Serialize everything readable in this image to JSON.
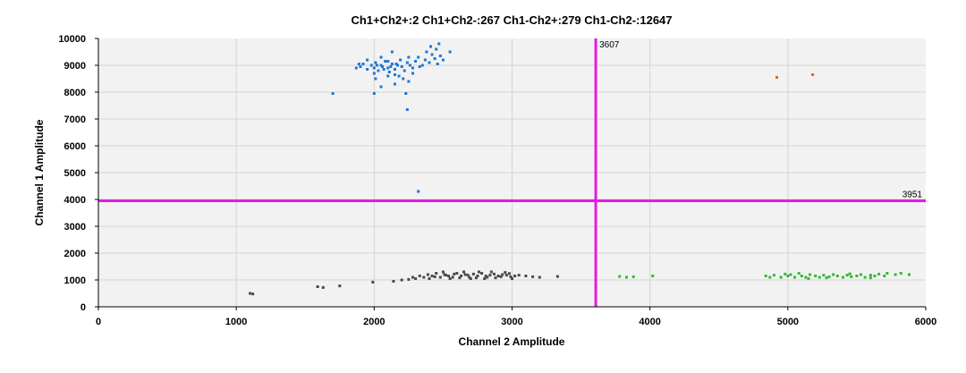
{
  "chart_data": {
    "type": "scatter",
    "title": "Ch1+Ch2+:2  Ch1+Ch2-:267  Ch1-Ch2+:279  Ch1-Ch2-:12647",
    "xlabel": "Channel 2 Amplitude",
    "ylabel": "Channel 1 Amplitude",
    "xlim": [
      0,
      6000
    ],
    "ylim": [
      0,
      10000
    ],
    "xticks": [
      0,
      1000,
      2000,
      3000,
      4000,
      5000,
      6000
    ],
    "yticks": [
      0,
      1000,
      2000,
      3000,
      4000,
      5000,
      6000,
      7000,
      8000,
      9000,
      10000
    ],
    "grid": true,
    "plot_background": "#f2f2f2",
    "threshold_color": "#e619e6",
    "thresholds": {
      "vertical": {
        "value": 3607,
        "label": "3607"
      },
      "horizontal": {
        "value": 3951,
        "label": "3951"
      }
    },
    "series": [
      {
        "color": "#1f77d0",
        "points": [
          [
            1900,
            8950
          ],
          [
            1920,
            9050
          ],
          [
            1950,
            8850
          ],
          [
            1980,
            9000
          ],
          [
            2000,
            8900
          ],
          [
            2010,
            9100
          ],
          [
            2030,
            8800
          ],
          [
            2050,
            9000
          ],
          [
            2060,
            8950
          ],
          [
            2080,
            9150
          ],
          [
            2100,
            8900
          ],
          [
            2110,
            8750
          ],
          [
            2130,
            9050
          ],
          [
            2150,
            8850
          ],
          [
            2170,
            9000
          ],
          [
            2190,
            9200
          ],
          [
            2200,
            8950
          ],
          [
            2220,
            8800
          ],
          [
            2240,
            9100
          ],
          [
            2260,
            9000
          ],
          [
            2280,
            8900
          ],
          [
            2300,
            9150
          ],
          [
            2320,
            9300
          ],
          [
            2350,
            9000
          ],
          [
            2370,
            9200
          ],
          [
            2400,
            9100
          ],
          [
            2420,
            9400
          ],
          [
            2440,
            9250
          ],
          [
            2460,
            9050
          ],
          [
            2480,
            9350
          ],
          [
            2500,
            9200
          ],
          [
            1950,
            9200
          ],
          [
            2000,
            8700
          ],
          [
            2050,
            9300
          ],
          [
            2100,
            9150
          ],
          [
            2150,
            8650
          ],
          [
            2180,
            8600
          ],
          [
            2250,
            9300
          ],
          [
            2330,
            8950
          ],
          [
            2380,
            9500
          ],
          [
            2410,
            9700
          ],
          [
            2450,
            9600
          ],
          [
            2470,
            9800
          ],
          [
            2130,
            9500
          ],
          [
            1870,
            8900
          ],
          [
            1890,
            9050
          ],
          [
            2020,
            9000
          ],
          [
            2070,
            8850
          ],
          [
            2120,
            8950
          ],
          [
            2160,
            9050
          ],
          [
            2010,
            8500
          ],
          [
            2100,
            8600
          ],
          [
            2210,
            8500
          ],
          [
            2250,
            8400
          ],
          [
            2280,
            8700
          ],
          [
            2050,
            8200
          ],
          [
            2150,
            8300
          ],
          [
            2550,
            9500
          ],
          [
            1700,
            7950
          ],
          [
            2000,
            7950
          ],
          [
            2230,
            7950
          ],
          [
            2240,
            7350
          ],
          [
            2320,
            4300
          ]
        ]
      },
      {
        "color": "#e8601c",
        "points": [
          [
            4920,
            8550
          ],
          [
            5180,
            8650
          ]
        ]
      },
      {
        "color": "#33bb33",
        "points": [
          [
            3780,
            1130
          ],
          [
            3830,
            1100
          ],
          [
            3880,
            1120
          ],
          [
            4020,
            1150
          ],
          [
            4840,
            1150
          ],
          [
            4870,
            1100
          ],
          [
            4900,
            1180
          ],
          [
            4950,
            1100
          ],
          [
            5000,
            1150
          ],
          [
            5020,
            1200
          ],
          [
            5050,
            1100
          ],
          [
            5080,
            1250
          ],
          [
            5100,
            1150
          ],
          [
            5130,
            1100
          ],
          [
            5160,
            1200
          ],
          [
            5200,
            1150
          ],
          [
            5230,
            1100
          ],
          [
            5260,
            1180
          ],
          [
            5300,
            1120
          ],
          [
            5330,
            1200
          ],
          [
            5360,
            1150
          ],
          [
            5400,
            1100
          ],
          [
            5430,
            1180
          ],
          [
            5460,
            1120
          ],
          [
            5500,
            1150
          ],
          [
            5530,
            1200
          ],
          [
            5560,
            1100
          ],
          [
            5600,
            1180
          ],
          [
            5630,
            1150
          ],
          [
            5660,
            1220
          ],
          [
            5700,
            1150
          ],
          [
            5720,
            1250
          ],
          [
            5780,
            1200
          ],
          [
            5820,
            1250
          ],
          [
            5880,
            1200
          ],
          [
            4980,
            1220
          ],
          [
            5150,
            1050
          ],
          [
            5280,
            1080
          ],
          [
            5450,
            1230
          ],
          [
            5600,
            1080
          ]
        ]
      },
      {
        "color": "#4a4a4a",
        "points": [
          [
            1100,
            500
          ],
          [
            1120,
            480
          ],
          [
            1590,
            750
          ],
          [
            1630,
            720
          ],
          [
            1750,
            780
          ],
          [
            1990,
            920
          ],
          [
            2140,
            950
          ],
          [
            2200,
            1000
          ],
          [
            2250,
            1020
          ],
          [
            2280,
            1100
          ],
          [
            2300,
            1050
          ],
          [
            2330,
            1150
          ],
          [
            2360,
            1100
          ],
          [
            2390,
            1200
          ],
          [
            2420,
            1150
          ],
          [
            2450,
            1250
          ],
          [
            2480,
            1100
          ],
          [
            2510,
            1200
          ],
          [
            2540,
            1150
          ],
          [
            2570,
            1100
          ],
          [
            2600,
            1250
          ],
          [
            2630,
            1150
          ],
          [
            2660,
            1200
          ],
          [
            2690,
            1100
          ],
          [
            2720,
            1220
          ],
          [
            2750,
            1150
          ],
          [
            2780,
            1250
          ],
          [
            2810,
            1150
          ],
          [
            2840,
            1180
          ],
          [
            2870,
            1220
          ],
          [
            2900,
            1150
          ],
          [
            2930,
            1200
          ],
          [
            2960,
            1180
          ],
          [
            2990,
            1120
          ],
          [
            3020,
            1150
          ],
          [
            3050,
            1180
          ],
          [
            3100,
            1150
          ],
          [
            3150,
            1120
          ],
          [
            3200,
            1100
          ],
          [
            3330,
            1130
          ],
          [
            2400,
            1050
          ],
          [
            2500,
            1300
          ],
          [
            2550,
            1050
          ],
          [
            2650,
            1300
          ],
          [
            2700,
            1050
          ],
          [
            2800,
            1050
          ],
          [
            2850,
            1300
          ],
          [
            2950,
            1280
          ],
          [
            3000,
            1050
          ],
          [
            2440,
            1120
          ],
          [
            2520,
            1180
          ],
          [
            2580,
            1220
          ],
          [
            2620,
            1080
          ],
          [
            2680,
            1180
          ],
          [
            2740,
            1080
          ],
          [
            2760,
            1300
          ],
          [
            2820,
            1100
          ],
          [
            2880,
            1080
          ],
          [
            2920,
            1120
          ],
          [
            2980,
            1240
          ]
        ]
      }
    ]
  }
}
